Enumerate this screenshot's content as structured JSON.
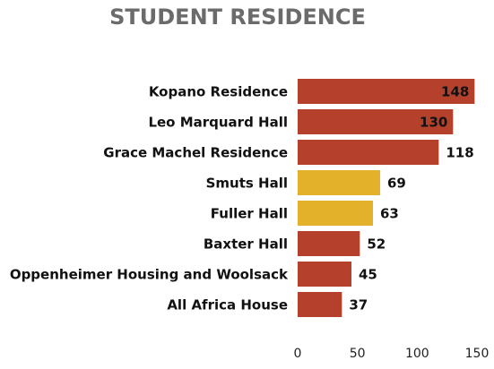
{
  "chart_data": {
    "type": "bar",
    "orientation": "horizontal",
    "title": "STUDENT RESIDENCE",
    "categories": [
      "Kopano Residence",
      "Leo Marquard Hall",
      "Grace Machel Residence",
      "Smuts Hall",
      "Fuller Hall",
      "Baxter Hall",
      "Oppenheimer Housing and Woolsack",
      "All Africa House"
    ],
    "values": [
      148,
      130,
      118,
      69,
      63,
      52,
      45,
      37
    ],
    "colors": [
      "#b5412c",
      "#b5412c",
      "#b5412c",
      "#e3b12a",
      "#e3b12a",
      "#b5412c",
      "#b5412c",
      "#b5412c"
    ],
    "xlim": [
      0,
      150
    ],
    "xticks": [
      0,
      50,
      100,
      150
    ],
    "grid": false
  }
}
